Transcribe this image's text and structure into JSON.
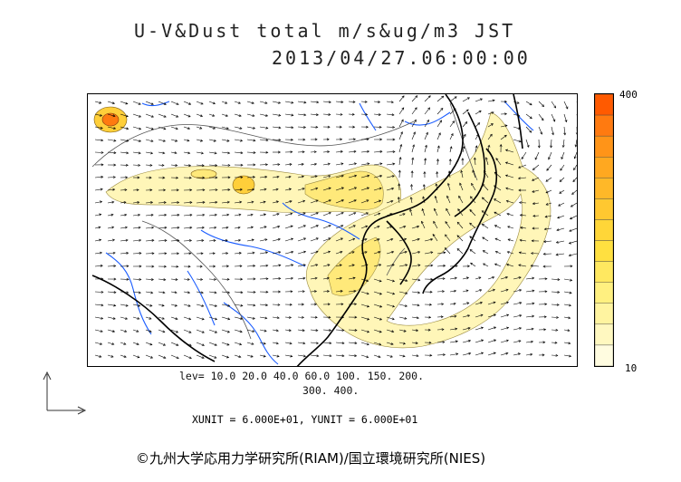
{
  "title": {
    "line1": "U-V&Dust total m/s&ug/m3 JST",
    "line2": "2013/04/27.06:00:00"
  },
  "colorbar": {
    "max_label": "400",
    "min_label": "10",
    "colors": [
      "#ff5a00",
      "#ff7a10",
      "#ff9418",
      "#ffa820",
      "#ffb828",
      "#ffc830",
      "#ffd638",
      "#ffe040",
      "#ffe860",
      "#fff080",
      "#fff4a0",
      "#fff8c0",
      "#fffce0"
    ]
  },
  "legend": {
    "lev_line1": "lev= 10.0 20.0 40.0 60.0 100. 150. 200.",
    "lev_line2": "300. 400."
  },
  "units": "XUNIT = 6.000E+01, YUNIT = 6.000E+01",
  "credit": "©九州大学応用力学研究所(RIAM)/国立環境研究所(NIES)",
  "colors": {
    "dust_light": "#fff6b8",
    "dust_mid": "#ffe97a",
    "dust_high": "#ffcf3a",
    "dust_peak": "#ff7a10",
    "coast": "#000000",
    "river": "#1a5cff",
    "border": "#555555"
  },
  "icons": [
    "vector-axis-icon"
  ]
}
